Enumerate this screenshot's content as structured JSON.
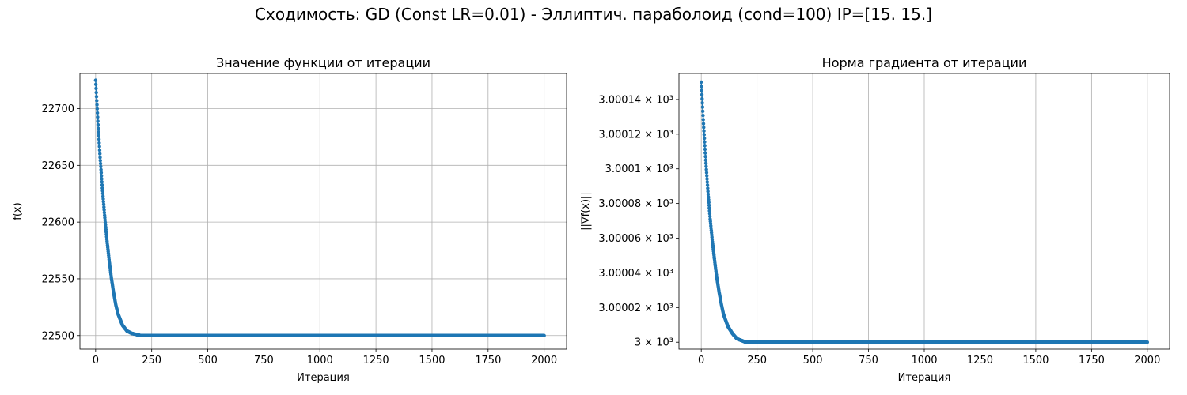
{
  "suptitle": "Сходимость: GD (Const LR=0.01) - Эллиптич. параболоид (cond=100) IP=[15. 15.]",
  "chart_data": [
    {
      "type": "line",
      "title": "Значение функции от итерации",
      "xlabel": "Итерация",
      "ylabel": "f(x)",
      "xlim": [
        -70,
        2100
      ],
      "ylim": [
        22488,
        22731
      ],
      "xticks": [
        0,
        250,
        500,
        750,
        1000,
        1250,
        1500,
        1750,
        2000
      ],
      "yticks": [
        22500,
        22550,
        22600,
        22650,
        22700
      ],
      "xtick_labels": [
        "0",
        "250",
        "500",
        "750",
        "1000",
        "1250",
        "1500",
        "1750",
        "2000"
      ],
      "ytick_labels": [
        "22500",
        "22550",
        "22600",
        "22650",
        "22700"
      ],
      "grid": true,
      "marker": "o",
      "color": "#1f77b4",
      "series": [
        {
          "x": [
            0,
            10,
            20,
            30,
            40,
            50,
            60,
            70,
            80,
            90,
            100,
            120,
            140,
            160,
            180,
            200,
            300,
            500,
            1000,
            1500,
            2000
          ],
          "values": [
            22725,
            22689,
            22657,
            22630,
            22606,
            22585,
            22567,
            22551,
            22538,
            22527,
            22519,
            22509,
            22504,
            22502,
            22501,
            22500,
            22500,
            22500,
            22500,
            22500,
            22500
          ]
        }
      ]
    },
    {
      "type": "line",
      "title": "Норма градиента от итерации",
      "xlabel": "Итерация",
      "ylabel": "||∇f(x)||",
      "xlim": [
        -100,
        2100
      ],
      "ylim": [
        2999.996,
        3000.155
      ],
      "yscale": "log",
      "xticks": [
        0,
        250,
        500,
        750,
        1000,
        1250,
        1500,
        1750,
        2000
      ],
      "yticks": [
        3000,
        3000.02,
        3000.04,
        3000.06,
        3000.08,
        3000.1,
        3000.12,
        3000.14
      ],
      "xtick_labels": [
        "0",
        "250",
        "500",
        "750",
        "1000",
        "1250",
        "1500",
        "1750",
        "2000"
      ],
      "ytick_labels": [
        "3 × 10³",
        "3.00002 × 10³",
        "3.00004 × 10³",
        "3.00006 × 10³",
        "3.00008 × 10³",
        "3.0001 × 10³",
        "3.00012 × 10³",
        "3.00014 × 10³"
      ],
      "grid": true,
      "grid_axis": "x",
      "marker": "o",
      "color": "#1f77b4",
      "series": [
        {
          "x": [
            0,
            10,
            20,
            30,
            40,
            50,
            60,
            70,
            80,
            90,
            100,
            120,
            140,
            160,
            180,
            200,
            300,
            500,
            1000,
            1500,
            2000
          ],
          "values": [
            3000.15,
            3000.126,
            3000.105,
            3000.087,
            3000.071,
            3000.058,
            3000.047,
            3000.037,
            3000.029,
            3000.022,
            3000.016,
            3000.009,
            3000.005,
            3000.002,
            3000.001,
            3000.0,
            3000.0,
            3000.0,
            3000.0,
            3000.0,
            3000.0
          ]
        }
      ]
    }
  ]
}
